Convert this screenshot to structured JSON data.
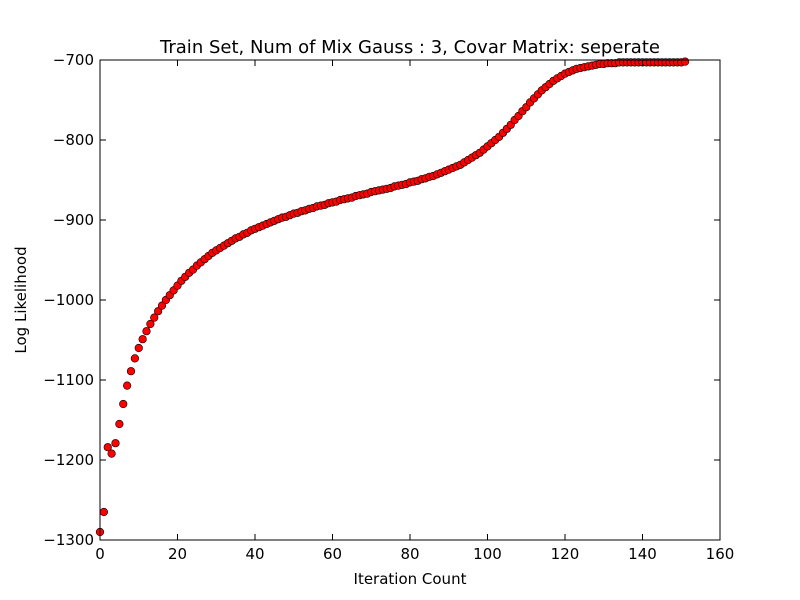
{
  "chart_data": {
    "type": "scatter",
    "title": "Train Set, Num of Mix Gauss : 3, Covar Matrix: seperate",
    "xlabel": "Iteration Count",
    "ylabel": "Log Likelihood",
    "xlim": [
      0,
      160
    ],
    "ylim": [
      -1300,
      -700
    ],
    "x_ticks": [
      0,
      20,
      40,
      60,
      80,
      100,
      120,
      140,
      160
    ],
    "y_ticks": [
      -1300,
      -1200,
      -1100,
      -1000,
      -900,
      -800,
      -700
    ],
    "x_tick_labels": [
      "0",
      "20",
      "40",
      "60",
      "80",
      "100",
      "120",
      "140",
      "160"
    ],
    "y_tick_labels": [
      "−1300",
      "−1200",
      "−1100",
      "−1000",
      "−900",
      "−800",
      "−700"
    ],
    "grid": false,
    "marker_color": "#ff0000",
    "marker_edge": "#000000",
    "series": [
      {
        "x": [
          0,
          1,
          2,
          3,
          4,
          5,
          6,
          7,
          8,
          9,
          10,
          11,
          12,
          13,
          14,
          15,
          16,
          17,
          18,
          19,
          20,
          21,
          22,
          23,
          24,
          25,
          26,
          27,
          28,
          29,
          30,
          31,
          32,
          33,
          34,
          35,
          36,
          37,
          38,
          39,
          40,
          41,
          42,
          43,
          44,
          45,
          46,
          47,
          48,
          49,
          50,
          51,
          52,
          53,
          54,
          55,
          56,
          57,
          58,
          59,
          60,
          61,
          62,
          63,
          64,
          65,
          66,
          67,
          68,
          69,
          70,
          71,
          72,
          73,
          74,
          75,
          76,
          77,
          78,
          79,
          80,
          81,
          82,
          83,
          84,
          85,
          86,
          87,
          88,
          89,
          90,
          91,
          92,
          93,
          94,
          95,
          96,
          97,
          98,
          99,
          100,
          101,
          102,
          103,
          104,
          105,
          106,
          107,
          108,
          109,
          110,
          111,
          112,
          113,
          114,
          115,
          116,
          117,
          118,
          119,
          120,
          121,
          122,
          123,
          124,
          125,
          126,
          127,
          128,
          129,
          130,
          131,
          132,
          133,
          134,
          135,
          136,
          137,
          138,
          139,
          140,
          141,
          142,
          143,
          144,
          145,
          146,
          147,
          148,
          149,
          150,
          151
        ],
        "y": [
          -1290,
          -1265,
          -1184,
          -1192,
          -1179,
          -1155,
          -1130,
          -1107,
          -1089,
          -1073,
          -1060,
          -1049,
          -1039,
          -1030,
          -1022,
          -1014,
          -1007,
          -1000,
          -994,
          -988,
          -982,
          -976,
          -971,
          -966,
          -962,
          -957,
          -953,
          -949,
          -945,
          -941,
          -938,
          -935,
          -932,
          -929,
          -926,
          -923,
          -921,
          -918,
          -916,
          -913,
          -911,
          -909,
          -907,
          -905,
          -903,
          -901,
          -899,
          -897,
          -896,
          -894,
          -892,
          -891,
          -889,
          -888,
          -886,
          -885,
          -883,
          -882,
          -881,
          -879,
          -878,
          -877,
          -875,
          -874,
          -873,
          -872,
          -870,
          -869,
          -868,
          -867,
          -865,
          -864,
          -863,
          -862,
          -861,
          -860,
          -858,
          -857,
          -856,
          -855,
          -853,
          -852,
          -851,
          -849,
          -848,
          -846,
          -845,
          -843,
          -841,
          -839,
          -837,
          -835,
          -833,
          -831,
          -828,
          -825,
          -822,
          -819,
          -816,
          -812,
          -808,
          -804,
          -800,
          -796,
          -791,
          -786,
          -781,
          -775,
          -770,
          -764,
          -759,
          -753,
          -748,
          -743,
          -738,
          -734,
          -730,
          -726,
          -723,
          -720,
          -717,
          -715,
          -713,
          -711,
          -710,
          -709,
          -708,
          -707,
          -706,
          -705,
          -705,
          -704,
          -704,
          -704,
          -703,
          -703,
          -703,
          -703,
          -703,
          -703,
          -703,
          -703,
          -703,
          -703,
          -703,
          -703,
          -703,
          -703,
          -703,
          -703,
          -703,
          -702
        ]
      }
    ]
  }
}
